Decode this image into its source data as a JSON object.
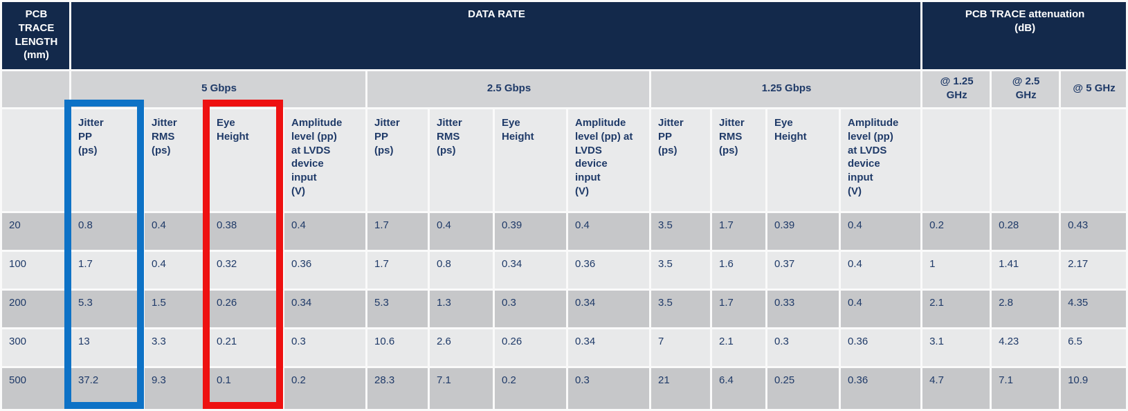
{
  "title_row": {
    "pcb_trace_length": "PCB\nTRACE\nLENGTH\n(mm)",
    "data_rate": "DATA RATE",
    "attenuation": "PCB TRACE attenuation\n(dB)"
  },
  "rate_groups": [
    {
      "label": "5 Gbps",
      "columns": [
        "Jitter\nPP\n(ps)",
        "Jitter\nRMS\n(ps)",
        "Eye\nHeight",
        "Amplitude\nlevel (pp)\nat LVDS\ndevice\ninput\n(V)"
      ]
    },
    {
      "label": "2.5 Gbps",
      "columns": [
        "Jitter\nPP\n(ps)",
        "Jitter\nRMS\n(ps)",
        "Eye\nHeight",
        "Amplitude\nlevel (pp) at\nLVDS\ndevice\ninput\n(V)"
      ]
    },
    {
      "label": "1.25 Gbps",
      "columns": [
        "Jitter\nPP\n(ps)",
        "Jitter\nRMS\n(ps)",
        "Eye\nHeight",
        "Amplitude\nlevel (pp)\nat LVDS\ndevice\ninput\n(V)"
      ]
    }
  ],
  "attenuation_columns": [
    "@ 1.25\nGHz",
    "@ 2.5\nGHz",
    "@ 5 GHz"
  ],
  "rows": [
    {
      "length": "20",
      "values": [
        "0.8",
        "0.4",
        "0.38",
        "0.4",
        "1.7",
        "0.4",
        "0.39",
        "0.4",
        "3.5",
        "1.7",
        "0.39",
        "0.4",
        "0.2",
        "0.28",
        "0.43"
      ]
    },
    {
      "length": "100",
      "values": [
        "1.7",
        "0.4",
        "0.32",
        "0.36",
        "1.7",
        "0.8",
        "0.34",
        "0.36",
        "3.5",
        "1.6",
        "0.37",
        "0.4",
        "1",
        "1.41",
        "2.17"
      ]
    },
    {
      "length": "200",
      "values": [
        "5.3",
        "1.5",
        "0.26",
        "0.34",
        "5.3",
        "1.3",
        "0.3",
        "0.34",
        "3.5",
        "1.7",
        "0.33",
        "0.4",
        "2.1",
        "2.8",
        "4.35"
      ]
    },
    {
      "length": "300",
      "values": [
        "13",
        "3.3",
        "0.21",
        "0.3",
        "10.6",
        "2.6",
        "0.26",
        "0.34",
        "7",
        "2.1",
        "0.3",
        "0.36",
        "3.1",
        "4.23",
        "6.5"
      ]
    },
    {
      "length": "500",
      "values": [
        "37.2",
        "9.3",
        "0.1",
        "0.2",
        "28.3",
        "7.1",
        "0.2",
        "0.3",
        "21",
        "6.4",
        "0.25",
        "0.36",
        "4.7",
        "7.1",
        "10.9"
      ]
    }
  ],
  "highlights": [
    {
      "name": "jitter-pp-5gbps-column",
      "color": "#0d72c6"
    },
    {
      "name": "eye-height-5gbps-column",
      "color": "#ee1111"
    }
  ],
  "colors": {
    "header_navy": "#13294b",
    "group_header_gray": "#d2d3d5",
    "column_header_gray": "#e9eaeb",
    "row_dark": "#c6c7c9",
    "row_light": "#e8e9ea",
    "text_navy": "#1f3a68",
    "header_text": "#ffffff"
  }
}
